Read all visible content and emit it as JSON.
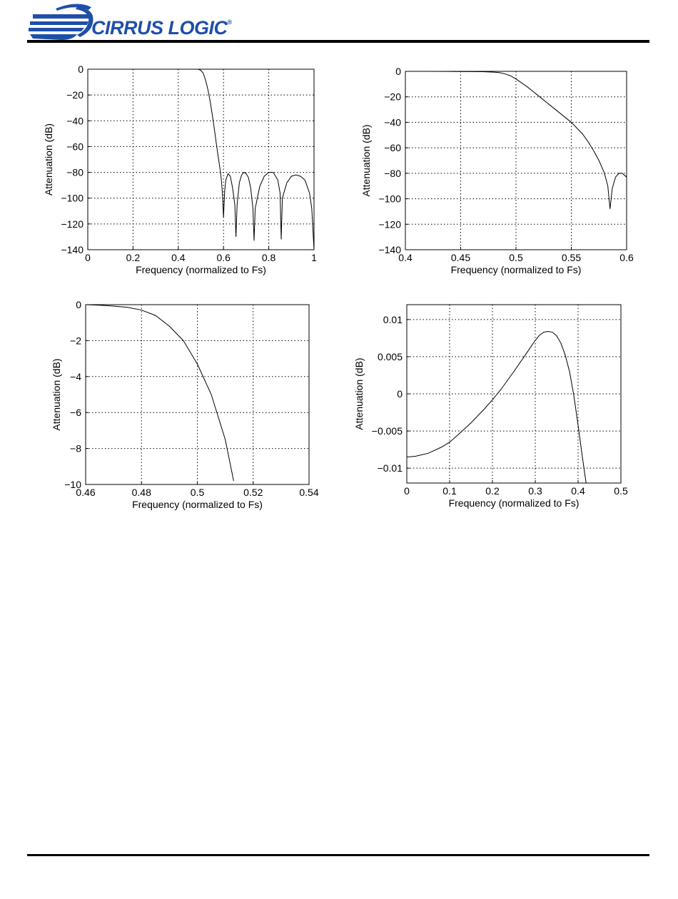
{
  "header": {
    "logo_text": "CIRRUS LOGIC",
    "logo_mark": "®",
    "brand_color": "#1f4fa8"
  },
  "chart_data": [
    {
      "type": "line",
      "xlabel": "Frequency (normalized to Fs)",
      "ylabel": "Attenuation (dB)",
      "xlim": [
        0,
        1
      ],
      "ylim": [
        -140,
        0
      ],
      "xticks": [
        0,
        0.2,
        0.4,
        0.6,
        0.8,
        1
      ],
      "xtick_labels": [
        "0",
        "0.2",
        "0.4",
        "0.6",
        "0.8",
        "1"
      ],
      "yticks": [
        0,
        -20,
        -40,
        -60,
        -80,
        -100,
        -120,
        -140
      ],
      "ytick_labels": [
        "0",
        "-20",
        "-40",
        "-60",
        "-80",
        "-100",
        "-120",
        "-140"
      ],
      "grid": true,
      "series": [
        {
          "x": [
            0,
            0.1,
            0.2,
            0.3,
            0.4,
            0.45,
            0.48,
            0.49,
            0.5,
            0.51,
            0.52,
            0.53,
            0.54,
            0.55,
            0.56,
            0.57,
            0.58,
            0.585,
            0.59,
            0.595,
            0.6,
            0.605,
            0.61,
            0.62,
            0.63,
            0.64,
            0.65,
            0.655,
            0.66,
            0.67,
            0.68,
            0.69,
            0.7,
            0.71,
            0.72,
            0.73,
            0.735,
            0.74,
            0.76,
            0.78,
            0.8,
            0.82,
            0.84,
            0.85,
            0.855,
            0.86,
            0.88,
            0.9,
            0.92,
            0.94,
            0.96,
            0.98,
            0.99,
            1
          ],
          "y": [
            0,
            0,
            0,
            0,
            0,
            0,
            0,
            -0.1,
            -1,
            -3,
            -8,
            -15,
            -24,
            -35,
            -47,
            -60,
            -72,
            -78,
            -85,
            -96,
            -115,
            -95,
            -86,
            -81,
            -83,
            -92,
            -105,
            -130,
            -105,
            -88,
            -82,
            -80,
            -81,
            -84,
            -92,
            -108,
            -133,
            -108,
            -91,
            -83,
            -80,
            -80,
            -86,
            -96,
            -132,
            -100,
            -88,
            -83,
            -82,
            -83,
            -86,
            -96,
            -108,
            -140
          ]
        }
      ]
    },
    {
      "type": "line",
      "xlabel": "Frequency (normalized to Fs)",
      "ylabel": "Attenuation (dB)",
      "xlim": [
        0.4,
        0.6
      ],
      "ylim": [
        -140,
        0
      ],
      "xticks": [
        0.4,
        0.45,
        0.5,
        0.55,
        0.6
      ],
      "xtick_labels": [
        "0.4",
        "0.45",
        "0.5",
        "0.55",
        "0.6"
      ],
      "yticks": [
        0,
        -20,
        -40,
        -60,
        -80,
        -100,
        -120,
        -140
      ],
      "ytick_labels": [
        "0",
        "-20",
        "-40",
        "-60",
        "-80",
        "-100",
        "-120",
        "-140"
      ],
      "grid": true,
      "series": [
        {
          "x": [
            0.4,
            0.42,
            0.44,
            0.46,
            0.47,
            0.48,
            0.485,
            0.49,
            0.495,
            0.5,
            0.505,
            0.51,
            0.52,
            0.53,
            0.54,
            0.55,
            0.56,
            0.565,
            0.57,
            0.575,
            0.58,
            0.583,
            0.585,
            0.587,
            0.59,
            0.593,
            0.596,
            0.6
          ],
          "y": [
            0,
            0,
            -0.1,
            -0.2,
            -0.3,
            -0.6,
            -1,
            -2,
            -3.5,
            -6,
            -9,
            -12,
            -19,
            -26,
            -33,
            -40,
            -49,
            -55,
            -62,
            -70,
            -80,
            -90,
            -108,
            -92,
            -83,
            -80,
            -80,
            -83
          ]
        }
      ]
    },
    {
      "type": "line",
      "xlabel": "Frequency (normalized to Fs)",
      "ylabel": "Attenuation (dB)",
      "xlim": [
        0.46,
        0.54
      ],
      "ylim": [
        -10,
        0
      ],
      "xticks": [
        0.46,
        0.48,
        0.5,
        0.52,
        0.54
      ],
      "xtick_labels": [
        "0.46",
        "0.48",
        "0.5",
        "0.52",
        "0.54"
      ],
      "yticks": [
        0,
        -2,
        -4,
        -6,
        -8,
        -10
      ],
      "ytick_labels": [
        "0",
        "-2",
        "-4",
        "-6",
        "-8",
        "-10"
      ],
      "grid": true,
      "series": [
        {
          "x": [
            0.46,
            0.465,
            0.47,
            0.475,
            0.48,
            0.485,
            0.49,
            0.495,
            0.5,
            0.505,
            0.51,
            0.513
          ],
          "y": [
            0,
            -0.03,
            -0.08,
            -0.15,
            -0.3,
            -0.6,
            -1.2,
            -2.0,
            -3.3,
            -5.0,
            -7.5,
            -9.8
          ]
        }
      ]
    },
    {
      "type": "line",
      "xlabel": "Frequency (normalized to Fs)",
      "ylabel": "Attenuation (dB)",
      "xlim": [
        0,
        0.5
      ],
      "ylim": [
        -0.012,
        0.012
      ],
      "xticks": [
        0,
        0.1,
        0.2,
        0.3,
        0.4,
        0.5
      ],
      "xtick_labels": [
        "0",
        "0.1",
        "0.2",
        "0.3",
        "0.4",
        "0.5"
      ],
      "yticks": [
        0.01,
        0.005,
        0,
        -0.005,
        -0.01
      ],
      "ytick_labels": [
        "0.01",
        "0.005",
        "0",
        "-0.005",
        "-0.01"
      ],
      "grid": true,
      "series": [
        {
          "x": [
            0,
            0.02,
            0.05,
            0.08,
            0.1,
            0.12,
            0.15,
            0.18,
            0.2,
            0.22,
            0.25,
            0.28,
            0.3,
            0.31,
            0.32,
            0.33,
            0.34,
            0.35,
            0.36,
            0.37,
            0.38,
            0.39,
            0.4,
            0.41,
            0.415,
            0.42
          ],
          "y": [
            -0.0085,
            -0.0084,
            -0.008,
            -0.0072,
            -0.0065,
            -0.0055,
            -0.0039,
            -0.0021,
            -0.0008,
            0.0006,
            0.003,
            0.0055,
            0.0072,
            0.0079,
            0.0083,
            0.0084,
            0.0083,
            0.0078,
            0.0068,
            0.0052,
            0.003,
            -0.0002,
            -0.0042,
            -0.0085,
            -0.0105,
            -0.0125
          ]
        }
      ]
    }
  ]
}
